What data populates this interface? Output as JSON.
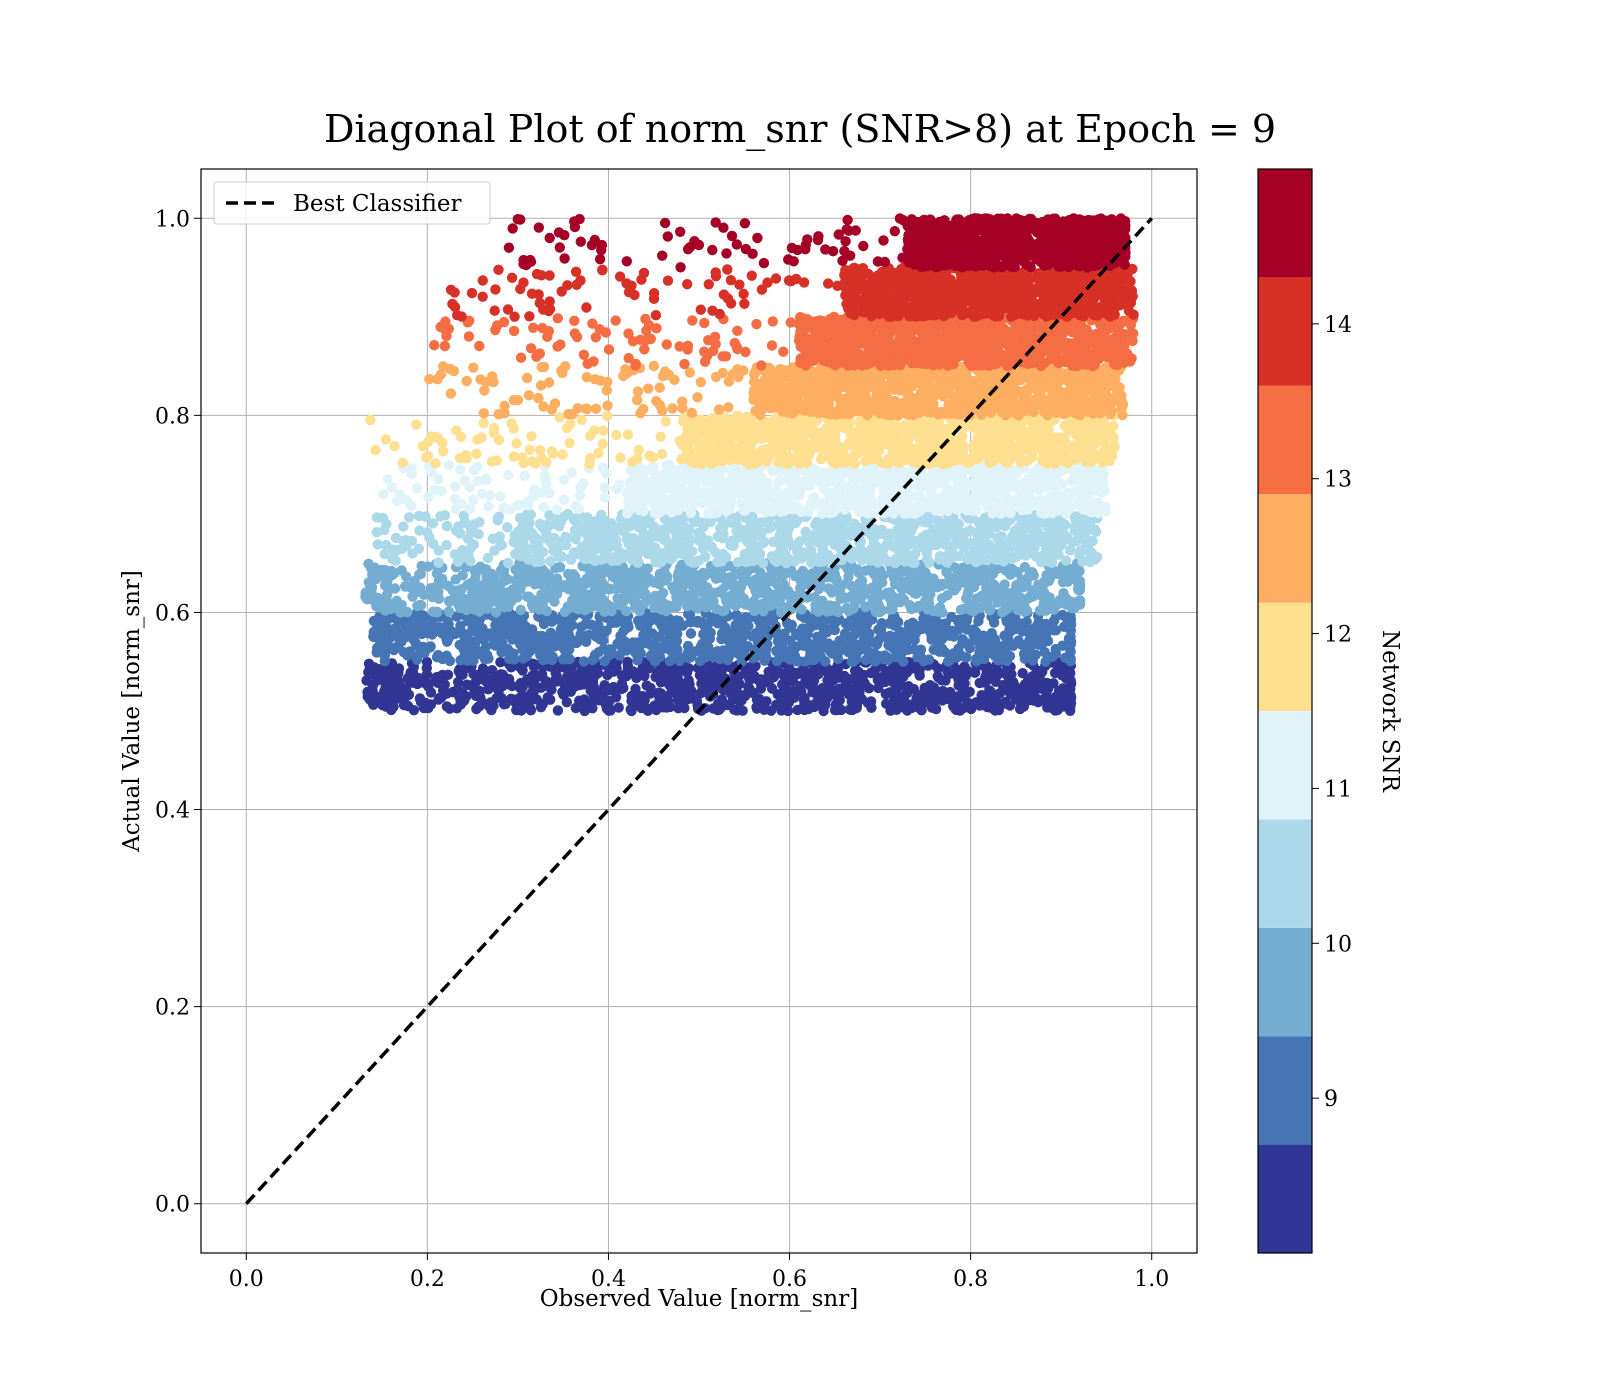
{
  "chart_data": {
    "type": "scatter",
    "title": "Diagonal Plot of norm_snr (SNR>8) at Epoch = 9",
    "xlabel": "Observed Value [norm_snr]",
    "ylabel": "Actual Value [norm_snr]",
    "xlim": [
      -0.05,
      1.05
    ],
    "ylim": [
      -0.05,
      1.05
    ],
    "x_ticks": [
      "0.0",
      "0.2",
      "0.4",
      "0.6",
      "0.8",
      "1.0"
    ],
    "y_ticks": [
      "0.0",
      "0.2",
      "0.4",
      "0.6",
      "0.8",
      "1.0"
    ],
    "grid": true,
    "legend": {
      "position": "top-left",
      "entries": [
        "Best Classifier"
      ]
    },
    "reference_line": {
      "name": "Best Classifier",
      "style": "dashed",
      "color": "#000000",
      "x": [
        0,
        1
      ],
      "y": [
        0,
        1
      ]
    },
    "colorbar": {
      "label": "Network SNR",
      "range": [
        8,
        15
      ],
      "tick_values": [
        9,
        10,
        11,
        12,
        13,
        14
      ],
      "ticks": [
        "9",
        "10",
        "11",
        "12",
        "13",
        "14"
      ]
    },
    "bands": [
      {
        "snr": 8.35,
        "color": "#313695",
        "y": [
          0.5,
          0.55
        ],
        "x_dense": [
          0.17,
          0.91
        ],
        "x_sparse": [
          0.13,
          0.89
        ]
      },
      {
        "snr": 9.05,
        "color": "#4575b4",
        "y": [
          0.55,
          0.6
        ],
        "x_dense": [
          0.19,
          0.91
        ],
        "x_sparse": [
          0.14,
          0.9
        ]
      },
      {
        "snr": 9.75,
        "color": "#74add1",
        "y": [
          0.6,
          0.65
        ],
        "x_dense": [
          0.22,
          0.92
        ],
        "x_sparse": [
          0.13,
          0.9
        ]
      },
      {
        "snr": 10.45,
        "color": "#abd9e9",
        "y": [
          0.65,
          0.7
        ],
        "x_dense": [
          0.3,
          0.93
        ],
        "x_sparse": [
          0.14,
          0.94
        ]
      },
      {
        "snr": 11.15,
        "color": "#e0f3f8",
        "y": [
          0.7,
          0.75
        ],
        "x_dense": [
          0.42,
          0.94
        ],
        "x_sparse": [
          0.15,
          0.95
        ]
      },
      {
        "snr": 11.85,
        "color": "#fee090",
        "y": [
          0.75,
          0.8
        ],
        "x_dense": [
          0.48,
          0.95
        ],
        "x_sparse": [
          0.13,
          0.96
        ]
      },
      {
        "snr": 12.55,
        "color": "#fdae61",
        "y": [
          0.8,
          0.85
        ],
        "x_dense": [
          0.56,
          0.96
        ],
        "x_sparse": [
          0.19,
          0.97
        ]
      },
      {
        "snr": 13.25,
        "color": "#f46d43",
        "y": [
          0.85,
          0.9
        ],
        "x_dense": [
          0.61,
          0.97
        ],
        "x_sparse": [
          0.2,
          0.98
        ]
      },
      {
        "snr": 13.95,
        "color": "#d73027",
        "y": [
          0.9,
          0.95
        ],
        "x_dense": [
          0.66,
          0.97
        ],
        "x_sparse": [
          0.21,
          0.98
        ]
      },
      {
        "snr": 14.65,
        "color": "#a50026",
        "y": [
          0.95,
          1.0
        ],
        "x_dense": [
          0.73,
          0.97
        ],
        "x_sparse": [
          0.29,
          0.97
        ]
      }
    ]
  }
}
